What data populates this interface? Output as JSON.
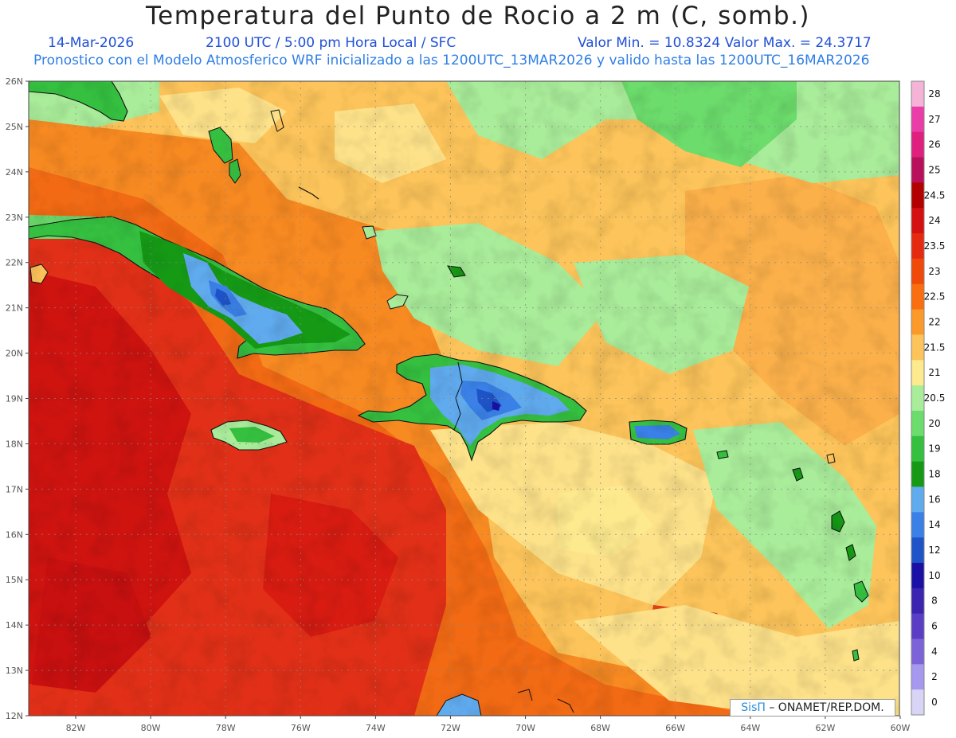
{
  "header": {
    "title": "Temperatura del Punto de Rocio a 2 m (C, somb.)",
    "date": "14-Mar-2026",
    "time": "2100 UTC / 5:00 pm Hora Local / SFC",
    "minmax": "Valor Min. = 10.8324  Valor Max. = 24.3717",
    "model_line": "Pronostico con el Modelo Atmosferico WRF inicializado a las 1200UTC_13MAR2026 y valido hasta las  1200UTC_16MAR2026"
  },
  "axes": {
    "lat_labels": [
      "26N",
      "25N",
      "24N",
      "23N",
      "22N",
      "21N",
      "20N",
      "19N",
      "18N",
      "17N",
      "16N",
      "15N",
      "14N",
      "13N",
      "12N"
    ],
    "lon_labels": [
      "82W",
      "80W",
      "78W",
      "76W",
      "74W",
      "72W",
      "70W",
      "68W",
      "66W",
      "64W",
      "62W",
      "60W"
    ]
  },
  "colorbar": {
    "labels": [
      "28",
      "27",
      "26",
      "25",
      "24.5",
      "24",
      "23.5",
      "23",
      "22.5",
      "22",
      "21.5",
      "21",
      "20.5",
      "20",
      "19",
      "18",
      "16",
      "14",
      "12",
      "10",
      "8",
      "6",
      "4",
      "2",
      "0"
    ],
    "colors": [
      "#f5b3d8",
      "#ea3da8",
      "#e0207f",
      "#b8105a",
      "#b30000",
      "#d41010",
      "#e62a10",
      "#f04a0a",
      "#f86e10",
      "#fb9a2a",
      "#fcc45a",
      "#fde98e",
      "#a9ec9a",
      "#6cdc6c",
      "#35c040",
      "#169a16",
      "#60aaee",
      "#3a80e6",
      "#1f54c8",
      "#1a10a6",
      "#3a24b0",
      "#5a3ec6",
      "#7c64d8",
      "#a698ee",
      "#d8d4f6"
    ]
  },
  "credit": {
    "logo_text": "SisΠ",
    "text": "– ONAMET/REP.DOM."
  }
}
